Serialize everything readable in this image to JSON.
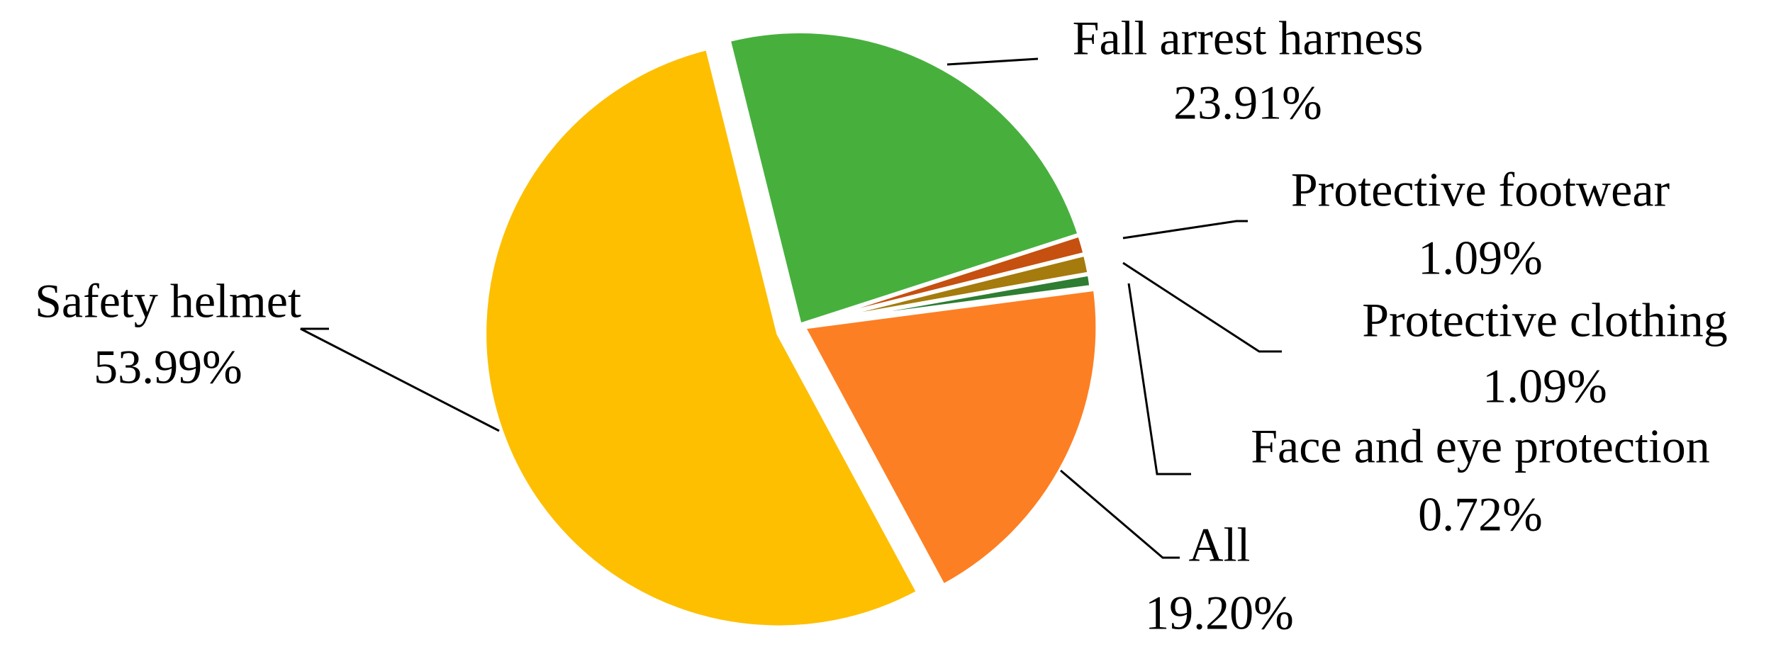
{
  "chart_data": {
    "type": "pie",
    "categories": [
      "Fall arrest harness",
      "Protective footwear",
      "Protective clothing",
      "Face and eye protection",
      "All",
      "Safety helmet"
    ],
    "values": [
      23.91,
      1.09,
      1.09,
      0.72,
      19.2,
      53.99
    ],
    "value_labels": [
      "23.91%",
      "1.09%",
      "1.09%",
      "0.72%",
      "19.20%",
      "53.99%"
    ],
    "colors": [
      "#47b03d",
      "#c5500f",
      "#a47b0c",
      "#2e7d32",
      "#fd7f23",
      "#fdbf00"
    ]
  }
}
